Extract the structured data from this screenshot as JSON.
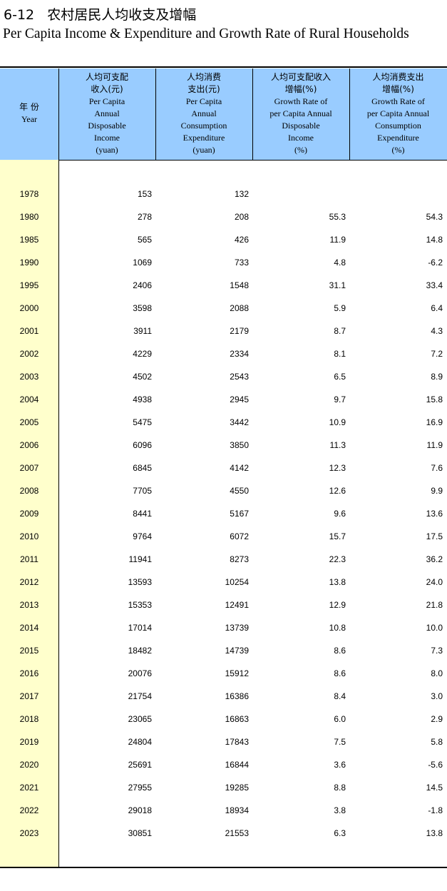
{
  "title": {
    "number": "6-12",
    "chinese": "农村居民人均收支及增幅",
    "english": "Per Capita Income & Expenditure and Growth Rate of Rural Households"
  },
  "columns": [
    {
      "cn": "年 份",
      "en": [
        "Year"
      ]
    },
    {
      "cn": [
        "人均可支配",
        "收入(元)"
      ],
      "en": [
        "Per Capita",
        "Annual",
        "Disposable",
        "Income",
        "(yuan)"
      ]
    },
    {
      "cn": [
        "人均消费",
        "支出(元)"
      ],
      "en": [
        "Per Capita",
        "Annual",
        "Consumption",
        "Expenditure",
        "(yuan)"
      ]
    },
    {
      "cn": [
        "人均可支配收入",
        "增幅(%)"
      ],
      "en": [
        "Growth Rate of",
        "per Capita Annual",
        "Disposable",
        "Income",
        "(%)"
      ]
    },
    {
      "cn": [
        "人均消费支出",
        "增幅(%)"
      ],
      "en": [
        "Growth Rate of",
        "per Capita Annual",
        "Consumption",
        "Expenditure",
        "(%)"
      ]
    }
  ],
  "rows": [
    [
      "1978",
      "153",
      "132",
      "",
      ""
    ],
    [
      "1980",
      "278",
      "208",
      "55.3",
      "54.3"
    ],
    [
      "1985",
      "565",
      "426",
      "11.9",
      "14.8"
    ],
    [
      "1990",
      "1069",
      "733",
      "4.8",
      "-6.2"
    ],
    [
      "1995",
      "2406",
      "1548",
      "31.1",
      "33.4"
    ],
    [
      "2000",
      "3598",
      "2088",
      "5.9",
      "6.4"
    ],
    [
      "2001",
      "3911",
      "2179",
      "8.7",
      "4.3"
    ],
    [
      "2002",
      "4229",
      "2334",
      "8.1",
      "7.2"
    ],
    [
      "2003",
      "4502",
      "2543",
      "6.5",
      "8.9"
    ],
    [
      "2004",
      "4938",
      "2945",
      "9.7",
      "15.8"
    ],
    [
      "2005",
      "5475",
      "3442",
      "10.9",
      "16.9"
    ],
    [
      "2006",
      "6096",
      "3850",
      "11.3",
      "11.9"
    ],
    [
      "2007",
      "6845",
      "4142",
      "12.3",
      "7.6"
    ],
    [
      "2008",
      "7705",
      "4550",
      "12.6",
      "9.9"
    ],
    [
      "2009",
      "8441",
      "5167",
      "9.6",
      "13.6"
    ],
    [
      "2010",
      "9764",
      "6072",
      "15.7",
      "17.5"
    ],
    [
      "2011",
      "11941",
      "8273",
      "22.3",
      "36.2"
    ],
    [
      "2012",
      "13593",
      "10254",
      "13.8",
      "24.0"
    ],
    [
      "2013",
      "15353",
      "12491",
      "12.9",
      "21.8"
    ],
    [
      "2014",
      "17014",
      "13739",
      "10.8",
      "10.0"
    ],
    [
      "2015",
      "18482",
      "14739",
      "8.6",
      "7.3"
    ],
    [
      "2016",
      "20076",
      "15912",
      "8.6",
      "8.0"
    ],
    [
      "2017",
      "21754",
      "16386",
      "8.4",
      "3.0"
    ],
    [
      "2018",
      "23065",
      "16863",
      "6.0",
      "2.9"
    ],
    [
      "2019",
      "24804",
      "17843",
      "7.5",
      "5.8"
    ],
    [
      "2020",
      "25691",
      "16844",
      "3.6",
      "-5.6"
    ],
    [
      "2021",
      "27955",
      "19285",
      "8.8",
      "14.5"
    ],
    [
      "2022",
      "29018",
      "18934",
      "3.8",
      "-1.8"
    ],
    [
      "2023",
      "30851",
      "21553",
      "6.3",
      "13.8"
    ]
  ]
}
